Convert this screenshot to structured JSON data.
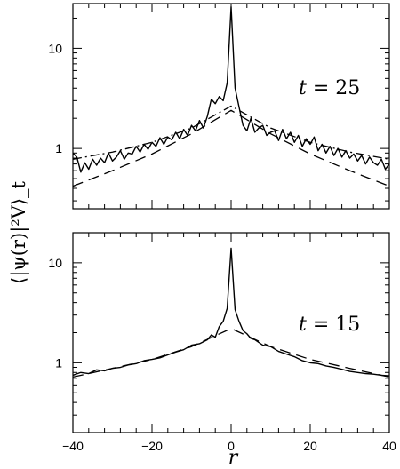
{
  "chart_data": [
    {
      "type": "line",
      "annotation": {
        "var": "t",
        "eq": " = ",
        "val": "25"
      },
      "xlim": [
        -40,
        40
      ],
      "ylim": [
        0.25,
        28
      ],
      "yscale": "log",
      "x_ticks": [
        -40,
        -20,
        0,
        20,
        40
      ],
      "y_ticks": [
        1,
        10
      ],
      "y_tick_labels": [
        "1",
        "10"
      ],
      "series": [
        {
          "style": "solid",
          "x": [
            -40,
            -39,
            -38,
            -37,
            -36,
            -35,
            -34,
            -33,
            -32,
            -31,
            -30,
            -29,
            -28,
            -27,
            -26,
            -25,
            -24,
            -23,
            -22,
            -21,
            -20,
            -19,
            -18,
            -17,
            -16,
            -15,
            -14,
            -13,
            -12,
            -11,
            -10,
            -9,
            -8,
            -7,
            -6,
            -5,
            -4,
            -3,
            -2,
            -1,
            0,
            1,
            2,
            3,
            4,
            5,
            6,
            7,
            8,
            9,
            10,
            11,
            12,
            13,
            14,
            15,
            16,
            17,
            18,
            19,
            20,
            21,
            22,
            23,
            24,
            25,
            26,
            27,
            28,
            29,
            30,
            31,
            32,
            33,
            34,
            35,
            36,
            37,
            38,
            39,
            40
          ],
          "y": [
            0.9,
            0.82,
            0.58,
            0.72,
            0.62,
            0.78,
            0.68,
            0.8,
            0.72,
            0.9,
            0.75,
            0.82,
            0.95,
            0.78,
            0.9,
            0.88,
            1.05,
            0.92,
            1.1,
            0.98,
            1.15,
            1.05,
            1.28,
            1.1,
            1.3,
            1.22,
            1.45,
            1.25,
            1.55,
            1.35,
            1.7,
            1.5,
            1.9,
            1.6,
            2.1,
            3.1,
            2.8,
            3.3,
            3.0,
            4.5,
            26,
            4.0,
            2.6,
            1.7,
            1.5,
            2.0,
            1.45,
            1.6,
            1.7,
            1.35,
            1.45,
            1.5,
            1.2,
            1.55,
            1.25,
            1.45,
            1.15,
            1.35,
            1.05,
            1.25,
            1.1,
            1.3,
            0.95,
            1.1,
            0.9,
            1.05,
            0.85,
            1.0,
            0.82,
            0.95,
            0.8,
            0.88,
            0.75,
            0.85,
            0.7,
            0.82,
            0.72,
            0.68,
            0.78,
            0.62,
            0.7
          ]
        },
        {
          "style": "dashed",
          "x": [
            -40,
            -30,
            -20,
            -10,
            0,
            10,
            20,
            30,
            40
          ],
          "y": [
            0.42,
            0.6,
            0.88,
            1.4,
            2.4,
            1.4,
            0.88,
            0.6,
            0.42
          ]
        },
        {
          "style": "dashdot",
          "x": [
            -40,
            -30,
            -20,
            -10,
            0,
            10,
            20,
            30,
            40
          ],
          "y": [
            0.78,
            0.92,
            1.15,
            1.6,
            2.65,
            1.6,
            1.15,
            0.92,
            0.78
          ]
        }
      ]
    },
    {
      "type": "line",
      "annotation": {
        "var": "t",
        "eq": " = ",
        "val": "15"
      },
      "xlim": [
        -40,
        40
      ],
      "ylim": [
        0.2,
        20
      ],
      "yscale": "log",
      "x_ticks": [
        -40,
        -20,
        0,
        20,
        40
      ],
      "y_ticks": [
        1,
        10
      ],
      "y_tick_labels": [
        "1",
        "10"
      ],
      "x_tick_labels": [
        "−40",
        "−20",
        "0",
        "20",
        "40"
      ],
      "xlabel": "r",
      "ylabel": "⟨|ψ(r)|²V⟩_t",
      "series": [
        {
          "style": "solid",
          "x": [
            -40,
            -38,
            -36,
            -34,
            -32,
            -30,
            -28,
            -26,
            -24,
            -22,
            -20,
            -18,
            -16,
            -14,
            -12,
            -10,
            -8,
            -6,
            -5,
            -4,
            -3,
            -2,
            -1,
            0,
            1,
            2,
            3,
            4,
            5,
            6,
            8,
            10,
            12,
            14,
            16,
            18,
            20,
            22,
            24,
            26,
            28,
            30,
            32,
            34,
            36,
            38,
            40
          ],
          "y": [
            0.75,
            0.8,
            0.78,
            0.85,
            0.83,
            0.88,
            0.9,
            0.95,
            0.98,
            1.05,
            1.08,
            1.12,
            1.2,
            1.28,
            1.35,
            1.5,
            1.55,
            1.7,
            1.9,
            1.8,
            2.3,
            2.6,
            3.5,
            14,
            3.4,
            2.6,
            2.1,
            1.95,
            1.75,
            1.7,
            1.5,
            1.45,
            1.3,
            1.22,
            1.15,
            1.05,
            1.0,
            0.98,
            0.93,
            0.9,
            0.86,
            0.82,
            0.8,
            0.78,
            0.77,
            0.75,
            0.74
          ]
        },
        {
          "style": "dashed",
          "x": [
            -40,
            -30,
            -20,
            -10,
            0,
            10,
            20,
            30,
            40
          ],
          "y": [
            0.72,
            0.88,
            1.08,
            1.45,
            2.2,
            1.45,
            1.08,
            0.88,
            0.72
          ]
        }
      ]
    }
  ]
}
